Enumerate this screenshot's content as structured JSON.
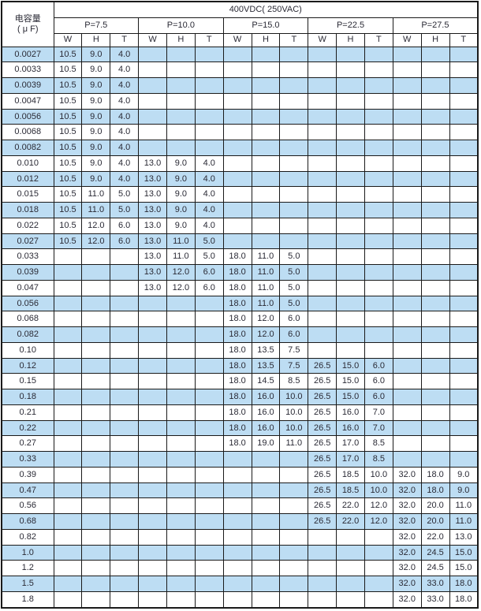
{
  "colors": {
    "row_highlight": "#bdddf3",
    "border": "#1a1a1a",
    "text": "#2a2a35",
    "background": "#ffffff"
  },
  "table": {
    "cap_header_line1": "电容量",
    "cap_header_line2": "( μ F)",
    "voltage_header": "400VDC( 250VAC)",
    "pitch_groups": [
      "P=7.5",
      "P=10.0",
      "P=15.0",
      "P=22.5",
      "P=27.5"
    ],
    "dim_headers": [
      "W",
      "H",
      "T"
    ],
    "rows": [
      {
        "cap": "0.0027",
        "values": [
          "10.5",
          "9.0",
          "4.0",
          "",
          "",
          "",
          "",
          "",
          "",
          "",
          "",
          "",
          "",
          "",
          ""
        ]
      },
      {
        "cap": "0.0033",
        "values": [
          "10.5",
          "9.0",
          "4.0",
          "",
          "",
          "",
          "",
          "",
          "",
          "",
          "",
          "",
          "",
          "",
          ""
        ]
      },
      {
        "cap": "0.0039",
        "values": [
          "10.5",
          "9.0",
          "4.0",
          "",
          "",
          "",
          "",
          "",
          "",
          "",
          "",
          "",
          "",
          "",
          ""
        ]
      },
      {
        "cap": "0.0047",
        "values": [
          "10.5",
          "9.0",
          "4.0",
          "",
          "",
          "",
          "",
          "",
          "",
          "",
          "",
          "",
          "",
          "",
          ""
        ]
      },
      {
        "cap": "0.0056",
        "values": [
          "10.5",
          "9.0",
          "4.0",
          "",
          "",
          "",
          "",
          "",
          "",
          "",
          "",
          "",
          "",
          "",
          ""
        ]
      },
      {
        "cap": "0.0068",
        "values": [
          "10.5",
          "9.0",
          "4.0",
          "",
          "",
          "",
          "",
          "",
          "",
          "",
          "",
          "",
          "",
          "",
          ""
        ]
      },
      {
        "cap": "0.0082",
        "values": [
          "10.5",
          "9.0",
          "4.0",
          "",
          "",
          "",
          "",
          "",
          "",
          "",
          "",
          "",
          "",
          "",
          ""
        ]
      },
      {
        "cap": "0.010",
        "values": [
          "10.5",
          "9.0",
          "4.0",
          "13.0",
          "9.0",
          "4.0",
          "",
          "",
          "",
          "",
          "",
          "",
          "",
          "",
          ""
        ]
      },
      {
        "cap": "0.012",
        "values": [
          "10.5",
          "9.0",
          "4.0",
          "13.0",
          "9.0",
          "4.0",
          "",
          "",
          "",
          "",
          "",
          "",
          "",
          "",
          ""
        ]
      },
      {
        "cap": "0.015",
        "values": [
          "10.5",
          "11.0",
          "5.0",
          "13.0",
          "9.0",
          "4.0",
          "",
          "",
          "",
          "",
          "",
          "",
          "",
          "",
          ""
        ]
      },
      {
        "cap": "0.018",
        "values": [
          "10.5",
          "11.0",
          "5.0",
          "13.0",
          "9.0",
          "4.0",
          "",
          "",
          "",
          "",
          "",
          "",
          "",
          "",
          ""
        ]
      },
      {
        "cap": "0.022",
        "values": [
          "10.5",
          "12.0",
          "6.0",
          "13.0",
          "9.0",
          "4.0",
          "",
          "",
          "",
          "",
          "",
          "",
          "",
          "",
          ""
        ]
      },
      {
        "cap": "0.027",
        "values": [
          "10.5",
          "12.0",
          "6.0",
          "13.0",
          "11.0",
          "5.0",
          "",
          "",
          "",
          "",
          "",
          "",
          "",
          "",
          ""
        ]
      },
      {
        "cap": "0.033",
        "values": [
          "",
          "",
          "",
          "13.0",
          "11.0",
          "5.0",
          "18.0",
          "11.0",
          "5.0",
          "",
          "",
          "",
          "",
          "",
          ""
        ]
      },
      {
        "cap": "0.039",
        "values": [
          "",
          "",
          "",
          "13.0",
          "12.0",
          "6.0",
          "18.0",
          "11.0",
          "5.0",
          "",
          "",
          "",
          "",
          "",
          ""
        ]
      },
      {
        "cap": "0.047",
        "values": [
          "",
          "",
          "",
          "13.0",
          "12.0",
          "6.0",
          "18.0",
          "11.0",
          "5.0",
          "",
          "",
          "",
          "",
          "",
          ""
        ]
      },
      {
        "cap": "0.056",
        "values": [
          "",
          "",
          "",
          "",
          "",
          "",
          "18.0",
          "11.0",
          "5.0",
          "",
          "",
          "",
          "",
          "",
          ""
        ]
      },
      {
        "cap": "0.068",
        "values": [
          "",
          "",
          "",
          "",
          "",
          "",
          "18.0",
          "12.0",
          "6.0",
          "",
          "",
          "",
          "",
          "",
          ""
        ]
      },
      {
        "cap": "0.082",
        "values": [
          "",
          "",
          "",
          "",
          "",
          "",
          "18.0",
          "12.0",
          "6.0",
          "",
          "",
          "",
          "",
          "",
          ""
        ]
      },
      {
        "cap": "0.10",
        "values": [
          "",
          "",
          "",
          "",
          "",
          "",
          "18.0",
          "13.5",
          "7.5",
          "",
          "",
          "",
          "",
          "",
          ""
        ]
      },
      {
        "cap": "0.12",
        "values": [
          "",
          "",
          "",
          "",
          "",
          "",
          "18.0",
          "13.5",
          "7.5",
          "26.5",
          "15.0",
          "6.0",
          "",
          "",
          ""
        ]
      },
      {
        "cap": "0.15",
        "values": [
          "",
          "",
          "",
          "",
          "",
          "",
          "18.0",
          "14.5",
          "8.5",
          "26.5",
          "15.0",
          "6.0",
          "",
          "",
          ""
        ]
      },
      {
        "cap": "0.18",
        "values": [
          "",
          "",
          "",
          "",
          "",
          "",
          "18.0",
          "16.0",
          "10.0",
          "26.5",
          "15.0",
          "6.0",
          "",
          "",
          ""
        ]
      },
      {
        "cap": "0.21",
        "values": [
          "",
          "",
          "",
          "",
          "",
          "",
          "18.0",
          "16.0",
          "10.0",
          "26.5",
          "16.0",
          "7.0",
          "",
          "",
          ""
        ]
      },
      {
        "cap": "0.22",
        "values": [
          "",
          "",
          "",
          "",
          "",
          "",
          "18.0",
          "16.0",
          "10.0",
          "26.5",
          "16.0",
          "7.0",
          "",
          "",
          ""
        ]
      },
      {
        "cap": "0.27",
        "values": [
          "",
          "",
          "",
          "",
          "",
          "",
          "18.0",
          "19.0",
          "11.0",
          "26.5",
          "17.0",
          "8.5",
          "",
          "",
          ""
        ]
      },
      {
        "cap": "0.33",
        "values": [
          "",
          "",
          "",
          "",
          "",
          "",
          "",
          "",
          "",
          "26.5",
          "17.0",
          "8.5",
          "",
          "",
          ""
        ]
      },
      {
        "cap": "0.39",
        "values": [
          "",
          "",
          "",
          "",
          "",
          "",
          "",
          "",
          "",
          "26.5",
          "18.5",
          "10.0",
          "32.0",
          "18.0",
          "9.0"
        ]
      },
      {
        "cap": "0.47",
        "values": [
          "",
          "",
          "",
          "",
          "",
          "",
          "",
          "",
          "",
          "26.5",
          "18.5",
          "10.0",
          "32.0",
          "18.0",
          "9.0"
        ]
      },
      {
        "cap": "0.56",
        "values": [
          "",
          "",
          "",
          "",
          "",
          "",
          "",
          "",
          "",
          "26.5",
          "22.0",
          "12.0",
          "32.0",
          "20.0",
          "11.0"
        ]
      },
      {
        "cap": "0.68",
        "values": [
          "",
          "",
          "",
          "",
          "",
          "",
          "",
          "",
          "",
          "26.5",
          "22.0",
          "12.0",
          "32.0",
          "20.0",
          "11.0"
        ]
      },
      {
        "cap": "0.82",
        "values": [
          "",
          "",
          "",
          "",
          "",
          "",
          "",
          "",
          "",
          "",
          "",
          "",
          "32.0",
          "22.0",
          "13.0"
        ]
      },
      {
        "cap": "1.0",
        "values": [
          "",
          "",
          "",
          "",
          "",
          "",
          "",
          "",
          "",
          "",
          "",
          "",
          "32.0",
          "24.5",
          "15.0"
        ]
      },
      {
        "cap": "1.2",
        "values": [
          "",
          "",
          "",
          "",
          "",
          "",
          "",
          "",
          "",
          "",
          "",
          "",
          "32.0",
          "24.5",
          "15.0"
        ]
      },
      {
        "cap": "1.5",
        "values": [
          "",
          "",
          "",
          "",
          "",
          "",
          "",
          "",
          "",
          "",
          "",
          "",
          "32.0",
          "33.0",
          "18.0"
        ]
      },
      {
        "cap": "1.8",
        "values": [
          "",
          "",
          "",
          "",
          "",
          "",
          "",
          "",
          "",
          "",
          "",
          "",
          "32.0",
          "33.0",
          "18.0"
        ]
      }
    ]
  }
}
